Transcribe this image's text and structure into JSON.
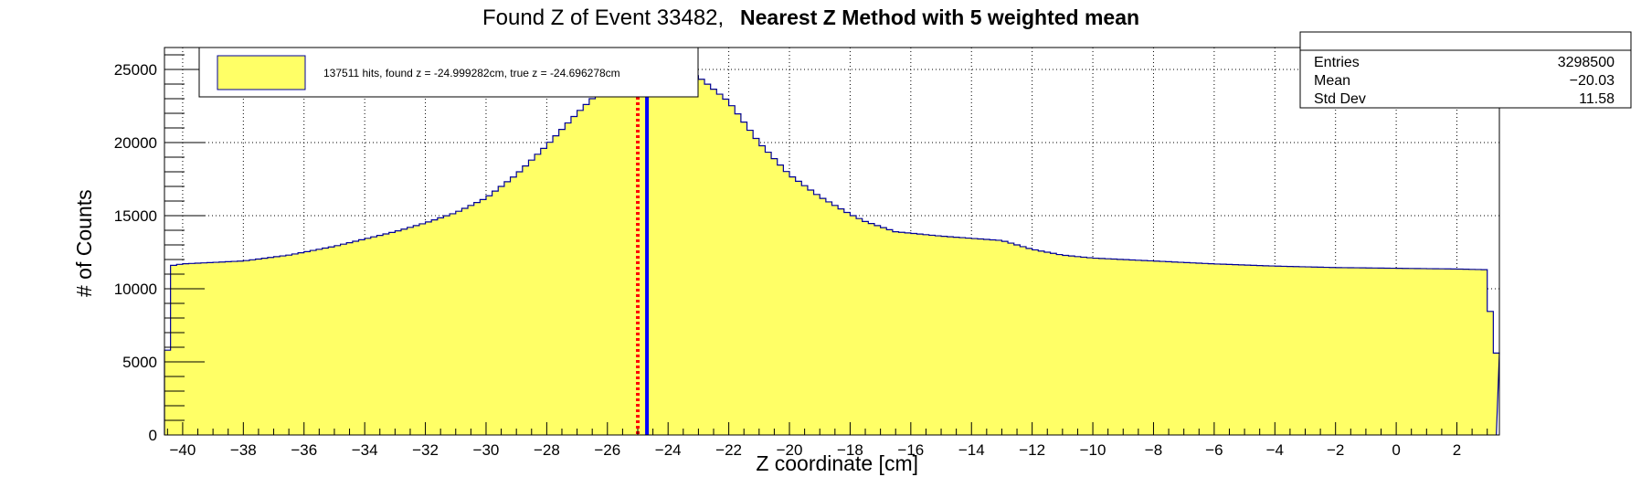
{
  "title": {
    "prefix": "Found Z of Event 33482,",
    "bold": "Nearest Z Method with 5 weighted mean"
  },
  "stats": {
    "rows": [
      {
        "label": "Entries",
        "value": "3298500"
      },
      {
        "label": "Mean",
        "value": "−20.03"
      },
      {
        "label": "Std Dev",
        "value": "11.58"
      }
    ]
  },
  "legend": {
    "text": "137511 hits, found z = -24.999282cm, true z = -24.696278cm",
    "swatch_color": "#ffff66"
  },
  "colors": {
    "fill": "#ffff66",
    "outline": "#000099",
    "true_z_line": "#0000ff",
    "found_z_line": "#ff0000"
  },
  "chart_data": {
    "type": "histogram",
    "title": "Found Z of Event 33482,   Nearest Z Method with 5 weighted mean",
    "xlabel": "Z coordinate [cm]",
    "ylabel": "# of Counts",
    "xlim": [
      -40.6,
      3.4
    ],
    "ylim": [
      0,
      26500
    ],
    "grid": true,
    "legend_position": "top-left",
    "xticks": [
      -40,
      -38,
      -36,
      -34,
      -32,
      -30,
      -28,
      -26,
      -24,
      -22,
      -20,
      -18,
      -16,
      -14,
      -12,
      -10,
      -8,
      -6,
      -4,
      -2,
      0,
      2
    ],
    "xtick_labels": [
      "−40",
      "−38",
      "−36",
      "−34",
      "−32",
      "−30",
      "−28",
      "−26",
      "−24",
      "−22",
      "−20",
      "−18",
      "−16",
      "−14",
      "−12",
      "−10",
      "−8",
      "−6",
      "−4",
      "−2",
      "0",
      "2"
    ],
    "yticks": [
      0,
      5000,
      10000,
      15000,
      20000,
      25000
    ],
    "ytick_labels": [
      "0",
      "5000",
      "10000",
      "15000",
      "20000",
      "25000"
    ],
    "curve_x": [
      -40.5,
      -40.3,
      -40.0,
      -38.0,
      -36.5,
      -35.0,
      -34.0,
      -33.0,
      -32.0,
      -31.0,
      -30.0,
      -29.0,
      -28.0,
      -27.0,
      -26.0,
      -25.0,
      -24.5,
      -24.0,
      -23.0,
      -22.0,
      -21.0,
      -20.0,
      -19.0,
      -18.0,
      -17.5,
      -16.5,
      -15.0,
      -13.0,
      -12.0,
      -11.0,
      -10.0,
      -8.0,
      -6.0,
      -4.0,
      -2.0,
      0.0,
      2.0,
      3.0,
      3.2
    ],
    "curve_y": [
      5800,
      11600,
      11700,
      11900,
      12300,
      12900,
      13400,
      13900,
      14500,
      15200,
      16200,
      17800,
      19800,
      22000,
      24000,
      25000,
      25300,
      25200,
      24500,
      22800,
      20000,
      17800,
      16300,
      15100,
      14600,
      13900,
      13600,
      13300,
      12700,
      12300,
      12100,
      11900,
      11700,
      11550,
      11450,
      11400,
      11350,
      11300,
      5600
    ],
    "markers": [
      {
        "name": "found z",
        "x": -24.999282,
        "color": "#ff0000",
        "style": "dotted"
      },
      {
        "name": "true z",
        "x": -24.696278,
        "color": "#0000ff",
        "style": "solid"
      }
    ]
  }
}
